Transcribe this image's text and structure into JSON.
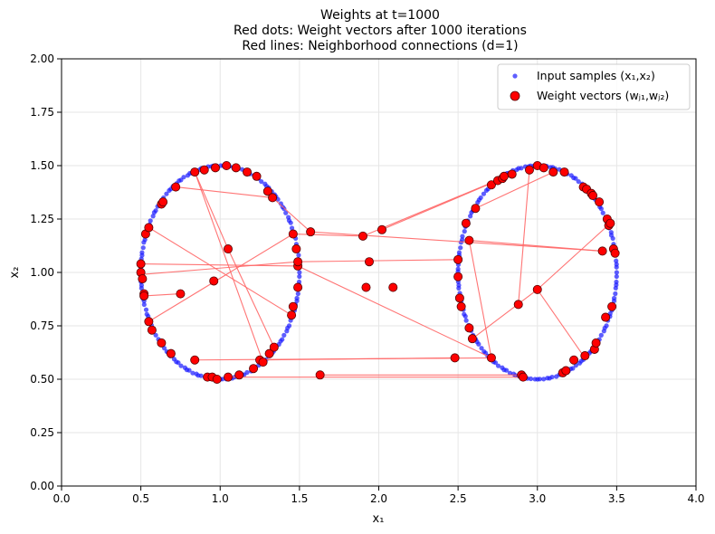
{
  "chart_data": {
    "type": "scatter",
    "title_lines": [
      "Weights at t=1000",
      "Red dots: Weight vectors after 1000 iterations",
      "Red lines: Neighborhood connections (d=1)"
    ],
    "xlabel": "x₁",
    "ylabel": "x₂",
    "xlim": [
      0.0,
      4.0
    ],
    "ylim": [
      0.0,
      2.0
    ],
    "xticks": [
      0.0,
      0.5,
      1.0,
      1.5,
      2.0,
      2.5,
      3.0,
      3.5,
      4.0
    ],
    "yticks": [
      0.0,
      0.25,
      0.5,
      0.75,
      1.0,
      1.25,
      1.5,
      1.75,
      2.0
    ],
    "xtick_labels": [
      "0.0",
      "0.5",
      "1.0",
      "1.5",
      "2.0",
      "2.5",
      "3.0",
      "3.5",
      "4.0"
    ],
    "ytick_labels": [
      "0.00",
      "0.25",
      "0.50",
      "0.75",
      "1.00",
      "1.25",
      "1.50",
      "1.75",
      "2.00"
    ],
    "grid": true,
    "legend_position": "top-right",
    "colors": {
      "input": "#1a1aff",
      "weight_fill": "#ff0000",
      "weight_edge": "#550000",
      "connection": "#ff6666"
    },
    "input_samples": {
      "name": "Input samples (x₁,x₂)",
      "shape": "two circles",
      "circles": [
        {
          "center": [
            1.0,
            1.0
          ],
          "radius": 0.5
        },
        {
          "center": [
            3.0,
            1.0
          ],
          "radius": 0.5
        }
      ]
    },
    "weight_vectors": {
      "name": "Weight vectors (wⱼ₁,wⱼ₂)",
      "points": [
        [
          0.5,
          1.04
        ],
        [
          0.5,
          1.0
        ],
        [
          0.51,
          0.97
        ],
        [
          0.52,
          0.9
        ],
        [
          0.52,
          0.89
        ],
        [
          0.53,
          1.18
        ],
        [
          0.55,
          1.21
        ],
        [
          0.55,
          0.77
        ],
        [
          0.57,
          0.73
        ],
        [
          0.63,
          1.32
        ],
        [
          0.64,
          1.33
        ],
        [
          0.63,
          0.67
        ],
        [
          0.69,
          0.62
        ],
        [
          0.72,
          1.4
        ],
        [
          0.75,
          0.9
        ],
        [
          0.84,
          1.47
        ],
        [
          0.84,
          0.59
        ],
        [
          0.9,
          1.48
        ],
        [
          0.92,
          0.51
        ],
        [
          0.95,
          0.51
        ],
        [
          0.96,
          0.96
        ],
        [
          0.97,
          1.49
        ],
        [
          0.98,
          0.5
        ],
        [
          1.04,
          1.5
        ],
        [
          1.05,
          0.51
        ],
        [
          1.05,
          1.11
        ],
        [
          1.1,
          1.49
        ],
        [
          1.12,
          0.52
        ],
        [
          1.17,
          1.47
        ],
        [
          1.21,
          0.55
        ],
        [
          1.23,
          1.45
        ],
        [
          1.25,
          0.59
        ],
        [
          1.27,
          0.58
        ],
        [
          1.3,
          1.38
        ],
        [
          1.31,
          0.62
        ],
        [
          1.33,
          1.35
        ],
        [
          1.34,
          0.65
        ],
        [
          1.45,
          0.8
        ],
        [
          1.46,
          0.84
        ],
        [
          1.46,
          1.18
        ],
        [
          1.48,
          1.11
        ],
        [
          1.49,
          1.03
        ],
        [
          1.49,
          1.05
        ],
        [
          1.49,
          0.93
        ],
        [
          1.57,
          1.19
        ],
        [
          1.63,
          0.52
        ],
        [
          1.9,
          1.17
        ],
        [
          1.92,
          0.93
        ],
        [
          1.94,
          1.05
        ],
        [
          2.02,
          1.2
        ],
        [
          2.09,
          0.93
        ],
        [
          2.48,
          0.6
        ],
        [
          2.5,
          0.98
        ],
        [
          2.5,
          1.06
        ],
        [
          2.51,
          0.88
        ],
        [
          2.52,
          0.84
        ],
        [
          2.55,
          1.23
        ],
        [
          2.57,
          1.15
        ],
        [
          2.57,
          0.74
        ],
        [
          2.59,
          0.69
        ],
        [
          2.61,
          1.3
        ],
        [
          2.71,
          0.6
        ],
        [
          2.71,
          1.41
        ],
        [
          2.75,
          1.43
        ],
        [
          2.78,
          1.44
        ],
        [
          2.79,
          1.45
        ],
        [
          2.84,
          1.46
        ],
        [
          2.88,
          0.85
        ],
        [
          2.9,
          0.52
        ],
        [
          2.91,
          0.51
        ],
        [
          2.95,
          1.48
        ],
        [
          3.0,
          0.92
        ],
        [
          3.0,
          1.5
        ],
        [
          3.04,
          1.49
        ],
        [
          3.1,
          1.47
        ],
        [
          3.16,
          0.53
        ],
        [
          3.17,
          1.47
        ],
        [
          3.18,
          0.54
        ],
        [
          3.23,
          0.59
        ],
        [
          3.29,
          1.4
        ],
        [
          3.3,
          0.61
        ],
        [
          3.31,
          1.39
        ],
        [
          3.34,
          1.37
        ],
        [
          3.35,
          1.36
        ],
        [
          3.36,
          0.64
        ],
        [
          3.37,
          0.67
        ],
        [
          3.39,
          1.33
        ],
        [
          3.41,
          1.1
        ],
        [
          3.43,
          0.79
        ],
        [
          3.44,
          1.25
        ],
        [
          3.45,
          1.22
        ],
        [
          3.46,
          1.23
        ],
        [
          3.47,
          0.84
        ],
        [
          3.48,
          1.11
        ],
        [
          3.49,
          1.09
        ]
      ]
    },
    "connections": [
      [
        [
          0.84,
          1.47
        ],
        [
          1.27,
          0.58
        ]
      ],
      [
        [
          0.84,
          1.47
        ],
        [
          1.05,
          1.11
        ]
      ],
      [
        [
          1.05,
          1.11
        ],
        [
          1.34,
          0.65
        ]
      ],
      [
        [
          0.55,
          1.21
        ],
        [
          1.45,
          0.8
        ]
      ],
      [
        [
          0.5,
          1.04
        ],
        [
          1.49,
          1.03
        ]
      ],
      [
        [
          0.5,
          0.99
        ],
        [
          1.49,
          1.05
        ]
      ],
      [
        [
          1.49,
          1.05
        ],
        [
          2.5,
          1.06
        ]
      ],
      [
        [
          0.52,
          0.89
        ],
        [
          0.75,
          0.9
        ]
      ],
      [
        [
          0.55,
          0.77
        ],
        [
          1.46,
          1.18
        ]
      ],
      [
        [
          0.72,
          1.4
        ],
        [
          1.33,
          1.35
        ]
      ],
      [
        [
          1.33,
          1.35
        ],
        [
          1.57,
          1.19
        ]
      ],
      [
        [
          1.57,
          1.19
        ],
        [
          3.41,
          1.1
        ]
      ],
      [
        [
          1.46,
          1.18
        ],
        [
          1.9,
          1.17
        ]
      ],
      [
        [
          1.9,
          1.17
        ],
        [
          2.84,
          1.46
        ]
      ],
      [
        [
          2.02,
          1.2
        ],
        [
          2.75,
          1.43
        ]
      ],
      [
        [
          2.57,
          1.15
        ],
        [
          3.41,
          1.1
        ]
      ],
      [
        [
          0.84,
          0.59
        ],
        [
          2.71,
          0.6
        ]
      ],
      [
        [
          1.05,
          0.51
        ],
        [
          2.91,
          0.51
        ]
      ],
      [
        [
          1.63,
          0.52
        ],
        [
          2.9,
          0.52
        ]
      ],
      [
        [
          2.71,
          0.6
        ],
        [
          2.57,
          1.15
        ]
      ],
      [
        [
          2.59,
          0.69
        ],
        [
          3.0,
          0.92
        ]
      ],
      [
        [
          3.0,
          0.92
        ],
        [
          3.46,
          1.23
        ]
      ],
      [
        [
          2.61,
          1.3
        ],
        [
          3.1,
          1.47
        ]
      ],
      [
        [
          1.49,
          1.03
        ],
        [
          2.71,
          0.6
        ]
      ],
      [
        [
          2.88,
          0.85
        ],
        [
          2.95,
          1.48
        ]
      ],
      [
        [
          3.0,
          0.92
        ],
        [
          3.29,
          0.61
        ]
      ],
      [
        [
          1.25,
          0.59
        ],
        [
          2.48,
          0.6
        ]
      ]
    ]
  }
}
